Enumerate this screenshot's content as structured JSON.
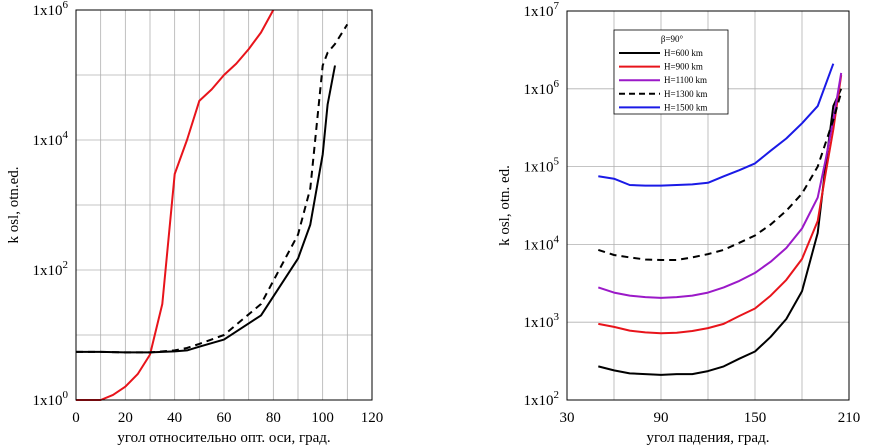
{
  "chart_data": [
    {
      "type": "line",
      "xlabel": "угол относительно опт. оси, град.",
      "ylabel": "k osl, otn.ed.",
      "xlim": [
        0,
        120
      ],
      "ylim_log10": [
        0,
        6
      ],
      "y_scale": "log",
      "grid": true,
      "x_ticks": [
        "0",
        "20",
        "40",
        "60",
        "80",
        "100",
        "120"
      ],
      "y_ticks": [
        {
          "base": "1x10",
          "exp": "0"
        },
        {
          "base": "1x10",
          "exp": "2"
        },
        {
          "base": "1x10",
          "exp": "4"
        },
        {
          "base": "1x10",
          "exp": "6"
        }
      ],
      "series": [
        {
          "color": "#e8141b",
          "dash": "solid",
          "x": [
            0,
            10,
            15,
            20,
            25,
            30,
            35,
            40,
            45,
            50,
            55,
            60,
            65,
            70,
            75,
            80
          ],
          "y": [
            1.0,
            1.0,
            1.2,
            1.6,
            2.5,
            5.0,
            30,
            3000,
            10000,
            40000,
            60000,
            100000,
            150000,
            250000,
            450000,
            1000000
          ]
        },
        {
          "color": "#000000",
          "dash": "solid",
          "x": [
            0,
            10,
            20,
            30,
            40,
            45,
            50,
            60,
            75,
            90,
            95,
            100,
            102,
            105
          ],
          "y": [
            5.5,
            5.5,
            5.4,
            5.4,
            5.6,
            5.8,
            6.6,
            8.5,
            20,
            150,
            500,
            6000,
            35000,
            140000
          ]
        },
        {
          "color": "#000000",
          "dash": "dashed",
          "x": [
            0,
            10,
            20,
            30,
            40,
            45,
            50,
            60,
            75,
            90,
            95,
            100,
            102,
            105,
            110
          ],
          "y": [
            5.5,
            5.5,
            5.4,
            5.4,
            5.8,
            6.3,
            7.3,
            10,
            30,
            350,
            1800,
            140000,
            220000,
            300000,
            600000
          ]
        }
      ]
    },
    {
      "type": "line",
      "xlabel": "угол падения, град.",
      "ylabel": "k osl, otn. ed.",
      "xlim": [
        30,
        210
      ],
      "ylim_log10": [
        2,
        7
      ],
      "y_scale": "log",
      "grid": true,
      "x_ticks": [
        "30",
        "90",
        "150",
        "210"
      ],
      "y_ticks": [
        {
          "base": "1x10",
          "exp": "2"
        },
        {
          "base": "1x10",
          "exp": "3"
        },
        {
          "base": "1x10",
          "exp": "4"
        },
        {
          "base": "1x10",
          "exp": "5"
        },
        {
          "base": "1x10",
          "exp": "6"
        },
        {
          "base": "1x10",
          "exp": "7"
        }
      ],
      "legend_title": "β=90°",
      "legend_position": "top-left",
      "series": [
        {
          "name": "H=600 km",
          "color": "#000000",
          "dash": "solid",
          "x": [
            50,
            60,
            70,
            80,
            90,
            100,
            110,
            120,
            130,
            140,
            150,
            160,
            170,
            180,
            190,
            195,
            200,
            205
          ],
          "y": [
            270,
            240,
            220,
            215,
            210,
            215,
            215,
            235,
            270,
            340,
            420,
            650,
            1100,
            2500,
            14000,
            100000,
            600000,
            1000000
          ]
        },
        {
          "name": "H=900 km",
          "color": "#e8141b",
          "dash": "solid",
          "x": [
            50,
            60,
            70,
            80,
            90,
            100,
            110,
            120,
            130,
            140,
            150,
            160,
            170,
            180,
            190,
            195,
            200,
            205
          ],
          "y": [
            950,
            870,
            780,
            740,
            720,
            730,
            770,
            840,
            950,
            1200,
            1500,
            2200,
            3500,
            6500,
            20000,
            80000,
            300000,
            1500000
          ]
        },
        {
          "name": "H=1100 km",
          "color": "#9b19c8",
          "dash": "solid",
          "x": [
            50,
            60,
            70,
            80,
            90,
            100,
            110,
            120,
            130,
            140,
            150,
            160,
            170,
            180,
            190,
            195,
            200,
            205
          ],
          "y": [
            2800,
            2400,
            2200,
            2100,
            2050,
            2100,
            2200,
            2400,
            2800,
            3400,
            4300,
            6000,
            9000,
            16000,
            40000,
            120000,
            400000,
            1600000
          ]
        },
        {
          "name": "H=1300 km",
          "color": "#000000",
          "dash": "dashed",
          "x": [
            50,
            60,
            70,
            80,
            90,
            100,
            110,
            120,
            130,
            140,
            150,
            160,
            170,
            180,
            190,
            195,
            200,
            205
          ],
          "y": [
            8500,
            7300,
            6800,
            6400,
            6300,
            6300,
            6800,
            7500,
            8500,
            10500,
            13000,
            18000,
            27000,
            45000,
            100000,
            200000,
            400000,
            900000
          ]
        },
        {
          "name": "H=1500 km",
          "color": "#1a1ae6",
          "dash": "solid",
          "x": [
            50,
            60,
            70,
            80,
            90,
            100,
            110,
            120,
            130,
            140,
            150,
            160,
            170,
            180,
            190,
            200
          ],
          "y": [
            75000,
            70000,
            58000,
            57000,
            57000,
            58000,
            59000,
            62000,
            75000,
            90000,
            110000,
            160000,
            230000,
            360000,
            600000,
            2100000
          ]
        }
      ]
    }
  ]
}
